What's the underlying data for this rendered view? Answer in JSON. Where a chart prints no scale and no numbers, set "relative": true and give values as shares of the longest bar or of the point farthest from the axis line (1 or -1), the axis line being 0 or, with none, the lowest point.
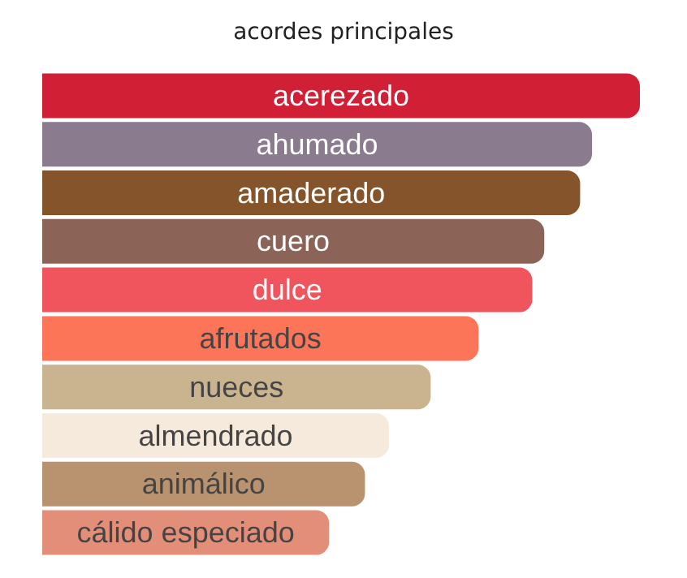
{
  "chart_data": {
    "type": "bar",
    "title": "acordes principales",
    "orientation": "horizontal",
    "relative": true,
    "categories": [
      "acerezado",
      "ahumado",
      "amaderado",
      "cuero",
      "dulce",
      "afrutados",
      "nueces",
      "almendrado",
      "animálico",
      "cálido especiado"
    ],
    "values": [
      1,
      0.92,
      0.9,
      0.84,
      0.82,
      0.73,
      0.65,
      0.58,
      0.54,
      0.48
    ],
    "colors": [
      "#d11f36",
      "#8a7b8e",
      "#86542a",
      "#8c6457",
      "#f0555e",
      "#fc7558",
      "#c9b48f",
      "#f5eadb",
      "#b99270",
      "#e28e78"
    ]
  }
}
